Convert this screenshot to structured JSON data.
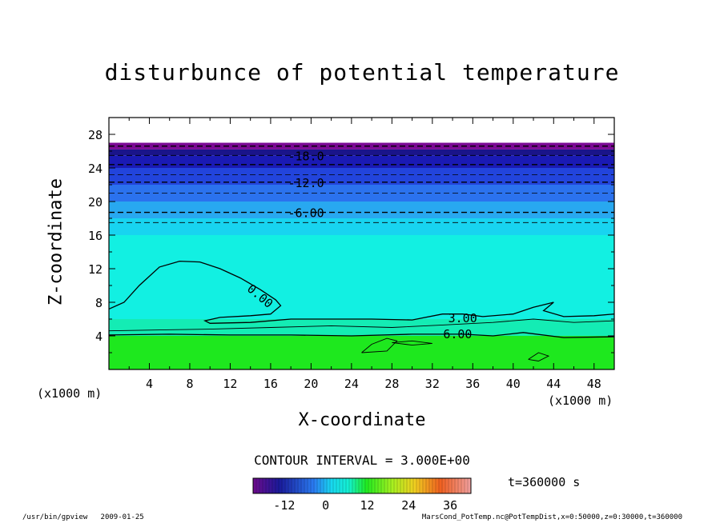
{
  "chart_data": {
    "type": "heatmap",
    "title": "disturbunce of potential temperature",
    "xlabel": "X-coordinate",
    "ylabel": "Z-coordinate",
    "x_unit": "(x1000 m)",
    "xlim": [
      0,
      50
    ],
    "ylim": [
      0,
      30
    ],
    "x_ticks": [
      4,
      8,
      12,
      16,
      20,
      24,
      28,
      32,
      36,
      40,
      44,
      48
    ],
    "y_ticks": [
      4,
      8,
      12,
      16,
      20,
      24,
      28
    ],
    "contour_labels": [
      {
        "value": -18,
        "text": "-18.0",
        "x": 19.5,
        "z": 25.5
      },
      {
        "value": -12,
        "text": "-12.0",
        "x": 19.5,
        "z": 22.3
      },
      {
        "value": -6,
        "text": "-6.00",
        "x": 19.5,
        "z": 18.7
      },
      {
        "value": 0,
        "text": "0.00",
        "x": 15.0,
        "z": 8.8
      },
      {
        "value": 3,
        "text": "3.00",
        "x": 35.0,
        "z": 6.2
      },
      {
        "value": 6,
        "text": "6.00",
        "x": 34.5,
        "z": 4.3
      }
    ],
    "bands": [
      {
        "z_bottom": 0,
        "z_top": 4.0,
        "color": "#1ee81e"
      },
      {
        "z_bottom": 4.0,
        "z_top": 6.0,
        "color": "#14ecb4"
      },
      {
        "z_bottom": 6.0,
        "z_top": 16.0,
        "color": "#12f0e2"
      },
      {
        "z_bottom": 16.0,
        "z_top": 18.0,
        "color": "#18d4f0"
      },
      {
        "z_bottom": 18.0,
        "z_top": 20.0,
        "color": "#28a8f0"
      },
      {
        "z_bottom": 20.0,
        "z_top": 22.0,
        "color": "#2b72ee"
      },
      {
        "z_bottom": 22.0,
        "z_top": 24.0,
        "color": "#2244dc"
      },
      {
        "z_bottom": 24.0,
        "z_top": 25.5,
        "color": "#1a1ab4"
      },
      {
        "z_bottom": 25.5,
        "z_top": 26.2,
        "color": "#1a148a"
      },
      {
        "z_bottom": 26.2,
        "z_top": 27.0,
        "color": "#7a0a94"
      }
    ],
    "colorbar": {
      "ticks": [
        "-12",
        "0",
        "12",
        "24",
        "36"
      ],
      "range": [
        -21,
        42
      ],
      "tick_values": [
        -12,
        0,
        12,
        24,
        36
      ]
    },
    "contour_interval": "CONTOUR INTERVAL = 3.000E+00",
    "time": "t=360000 s"
  },
  "footer": {
    "left": "/usr/bin/gpview   2009-01-25",
    "right": "MarsCond_PotTemp.nc@PotTempDist,x=0:50000,z=0:30000,t=360000"
  }
}
